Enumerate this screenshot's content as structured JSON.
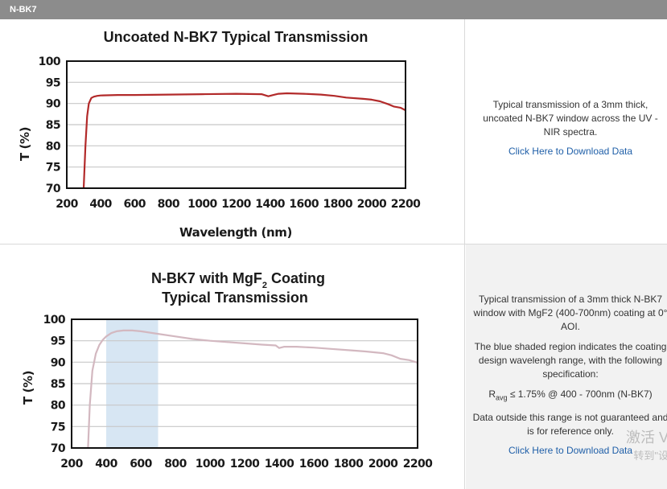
{
  "header": {
    "title": "N-BK7"
  },
  "panel1": {
    "description": "Typical transmission of a 3mm thick, uncoated N-BK7 window across the UV - NIR spectra.",
    "link": "Click Here to Download Data"
  },
  "panel2": {
    "p1": "Typical transmission of a 3mm thick N-BK7 window with MgF2 (400-700nm) coating at 0° AOI.",
    "p2": "The blue shaded region indicates the coating design wavelengh range, with the following specification:",
    "spec_prefix": "R",
    "spec_sub": "avg",
    "spec_rest": " ≤ 1.75% @ 400 - 700nm (N-BK7)",
    "p3": "Data outside this range is not guaranteed and is for reference only.",
    "link": "Click Here to Download Data"
  },
  "watermark": {
    "line1": "激活 V",
    "line2": "转到\"设"
  },
  "chart_data": [
    {
      "type": "line",
      "title": "Uncoated N-BK7 Typical Transmission",
      "xlabel": "Wavelength (nm)",
      "ylabel": "T (%)",
      "xlim": [
        200,
        2200
      ],
      "ylim": [
        70,
        100
      ],
      "xticks": [
        200,
        400,
        600,
        800,
        1000,
        1200,
        1400,
        1600,
        1800,
        2000,
        2200
      ],
      "yticks": [
        70,
        75,
        80,
        85,
        90,
        95,
        100
      ],
      "grid": "horizontal",
      "color": "#b22a2a",
      "series": [
        {
          "x": [
            300,
            310,
            320,
            330,
            345,
            360,
            380,
            400,
            500,
            600,
            800,
            1000,
            1200,
            1350,
            1390,
            1420,
            1450,
            1500,
            1600,
            1700,
            1780,
            1850,
            1950,
            2000,
            2050,
            2100,
            2130,
            2170,
            2200
          ],
          "y": [
            70,
            80,
            87,
            90,
            91.3,
            91.6,
            91.8,
            91.9,
            92.0,
            92.0,
            92.1,
            92.2,
            92.3,
            92.2,
            91.7,
            92.0,
            92.3,
            92.4,
            92.3,
            92.1,
            91.8,
            91.4,
            91.1,
            90.9,
            90.5,
            89.8,
            89.3,
            89.0,
            88.4
          ]
        }
      ]
    },
    {
      "type": "line",
      "title_main": "N-BK7 with MgF",
      "title_sub": "2",
      "title_rest": " Coating",
      "title_line2": "Typical Transmission",
      "ylabel": "T (%)",
      "xlim": [
        200,
        2200
      ],
      "ylim": [
        70,
        100
      ],
      "xticks": [
        200,
        400,
        600,
        800,
        1000,
        1200,
        1400,
        1600,
        1800,
        2000,
        2200
      ],
      "yticks": [
        70,
        75,
        80,
        85,
        90,
        95,
        100
      ],
      "grid": "horizontal",
      "color": "#d3b8c0",
      "shade_color": "#d7e6f3",
      "shade_range": [
        400,
        700
      ],
      "series": [
        {
          "x": [
            295,
            305,
            320,
            340,
            360,
            380,
            400,
            430,
            460,
            500,
            550,
            600,
            650,
            700,
            800,
            900,
            1000,
            1100,
            1200,
            1300,
            1380,
            1400,
            1430,
            1500,
            1600,
            1700,
            1800,
            1900,
            2000,
            2050,
            2100,
            2150,
            2200
          ],
          "y": [
            70,
            80,
            88,
            92,
            94,
            95.2,
            96.0,
            96.8,
            97.2,
            97.4,
            97.4,
            97.2,
            96.9,
            96.6,
            96.0,
            95.4,
            95.0,
            94.7,
            94.4,
            94.1,
            93.9,
            93.3,
            93.6,
            93.6,
            93.4,
            93.1,
            92.8,
            92.5,
            92.1,
            91.6,
            90.8,
            90.5,
            89.9
          ]
        }
      ]
    }
  ]
}
